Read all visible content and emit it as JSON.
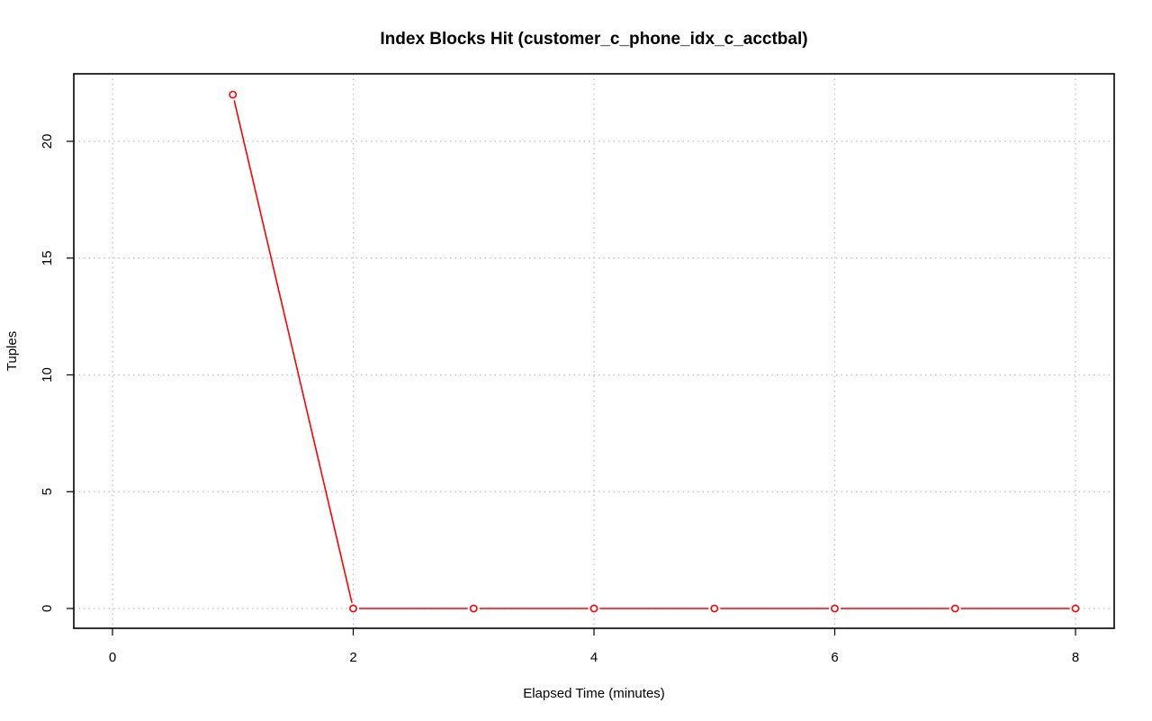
{
  "chart_data": {
    "type": "line",
    "title": "Index Blocks Hit (customer_c_phone_idx_c_acctbal)",
    "xlabel": "Elapsed Time (minutes)",
    "ylabel": "Tuples",
    "xlim": [
      0,
      8
    ],
    "ylim": [
      0,
      22
    ],
    "x_ticks": [
      0,
      2,
      4,
      6,
      8
    ],
    "y_ticks": [
      0,
      5,
      10,
      15,
      20
    ],
    "grid": true,
    "series": [
      {
        "color": "#ff0000",
        "marker": "open-circle",
        "x": [
          1,
          2,
          3,
          4,
          5,
          6,
          7,
          8
        ],
        "y": [
          22,
          0,
          0,
          0,
          0,
          0,
          0,
          0
        ]
      }
    ]
  }
}
